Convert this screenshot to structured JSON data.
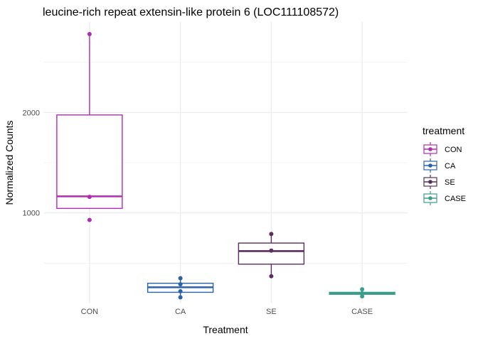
{
  "chart_data": {
    "type": "boxplot",
    "title": "leucine-rich repeat extensin-like protein 6 (LOC111108572)",
    "xlabel": "Treatment",
    "ylabel": "Normalized Counts",
    "categories": [
      "CON",
      "CA",
      "SE",
      "CASE"
    ],
    "ylim": [
      100,
      2900
    ],
    "y_ticks": [
      1000,
      2000
    ],
    "grid": true,
    "legend": {
      "title": "treatment",
      "placement": "right",
      "entries": [
        "CON",
        "CA",
        "SE",
        "CASE"
      ]
    },
    "colors": {
      "CON": "#b22cb2",
      "CA": "#2b63a9",
      "SE": "#5a2f5f",
      "CASE": "#3a9e8c"
    },
    "series": [
      {
        "name": "CON",
        "box": {
          "q1": 1045,
          "median": 1165,
          "q3": 1975,
          "lower_whisker": 1045,
          "upper_whisker": 2780
        },
        "points": [
          2780,
          1160,
          930
        ]
      },
      {
        "name": "CA",
        "box": {
          "q1": 210,
          "median": 260,
          "q3": 300,
          "lower_whisker": 160,
          "upper_whisker": 350
        },
        "points": [
          350,
          290,
          220,
          160
        ]
      },
      {
        "name": "SE",
        "box": {
          "q1": 490,
          "median": 620,
          "q3": 700,
          "lower_whisker": 370,
          "upper_whisker": 790
        },
        "points": [
          790,
          625,
          370
        ]
      },
      {
        "name": "CASE",
        "box": {
          "q1": 190,
          "median": 200,
          "q3": 210,
          "lower_whisker": 170,
          "upper_whisker": 240
        },
        "points": [
          240,
          200,
          170
        ]
      }
    ]
  }
}
